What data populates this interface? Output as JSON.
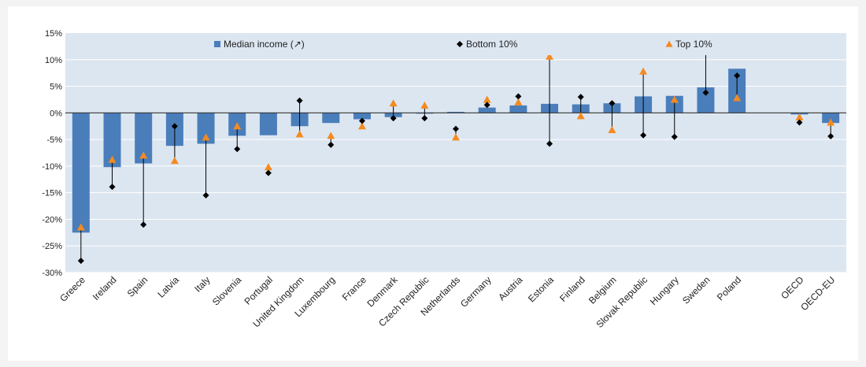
{
  "chart_data": {
    "type": "bar",
    "categories": [
      "Greece",
      "Ireland",
      "Spain",
      "Latvia",
      "Italy",
      "Slovenia",
      "Portugal",
      "United Kingdom",
      "Luxembourg",
      "France",
      "Denmark",
      "Czech Republic",
      "Netherlands",
      "Germany",
      "Austria",
      "Estonia",
      "Finland",
      "Belgium",
      "Slovak Republic",
      "Hungary",
      "Sweden",
      "Poland",
      "",
      "OECD",
      "OECD-EU"
    ],
    "series": [
      {
        "name": "Median income (↗)",
        "marker": "bar",
        "color": "#4a7ebb",
        "values": [
          -22.5,
          -10.2,
          -9.5,
          -6.2,
          -5.8,
          -4.3,
          -4.2,
          -2.5,
          -1.9,
          -1.2,
          -0.8,
          -0.1,
          0.2,
          1.0,
          1.4,
          1.7,
          1.6,
          1.8,
          3.1,
          3.2,
          4.8,
          8.3,
          null,
          -0.3,
          -1.9
        ]
      },
      {
        "name": "Bottom 10%",
        "marker": "diamond",
        "color": "#000000",
        "values": [
          -27.8,
          -13.9,
          -21.0,
          -2.5,
          -15.5,
          -6.8,
          -11.3,
          2.3,
          -6.0,
          -1.5,
          -1.0,
          -1.0,
          -3.0,
          1.5,
          3.1,
          -5.8,
          3.0,
          1.8,
          -4.2,
          -4.5,
          3.8,
          7.0,
          null,
          -1.8,
          -4.4
        ]
      },
      {
        "name": "Top 10%",
        "marker": "triangle",
        "color": "#f58a1f",
        "values": [
          -21.5,
          -8.8,
          -8.0,
          -9.0,
          -4.6,
          -2.5,
          -10.2,
          -4.0,
          -4.3,
          -2.5,
          1.8,
          1.4,
          -4.6,
          2.5,
          2.0,
          10.6,
          -0.6,
          -3.2,
          7.8,
          2.5,
          11.8,
          2.8,
          null,
          -0.8,
          -1.8
        ]
      }
    ],
    "y_ticks": [
      "15%",
      "10%",
      "5%",
      "0%",
      "-5%",
      "-10%",
      "-15%",
      "-20%",
      "-25%",
      "-30%"
    ],
    "ylim": [
      -30,
      15
    ],
    "grid": true,
    "legend_position": "top",
    "plot_background": "#dce6f1",
    "title": "",
    "xlabel": "",
    "ylabel": ""
  }
}
